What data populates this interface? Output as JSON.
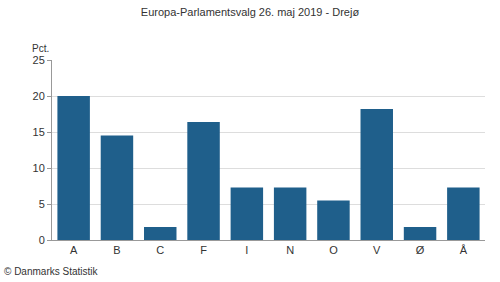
{
  "chart_data": {
    "type": "bar",
    "title": "Europa-Parlamentsvalg 26. maj 2019 - Drejø",
    "ylabel": "Pct.",
    "annotations": [
      "© Danmarks Statistik"
    ],
    "categories": [
      "A",
      "B",
      "C",
      "F",
      "I",
      "N",
      "O",
      "V",
      "Ø",
      "Å"
    ],
    "values": [
      20.0,
      14.5,
      1.8,
      16.4,
      7.3,
      7.3,
      5.5,
      18.2,
      1.8,
      7.3
    ],
    "color": "#1f5f8b",
    "ylim": [
      0,
      25
    ],
    "yticks": [
      0,
      5,
      10,
      15,
      20,
      25
    ],
    "grid": true
  }
}
